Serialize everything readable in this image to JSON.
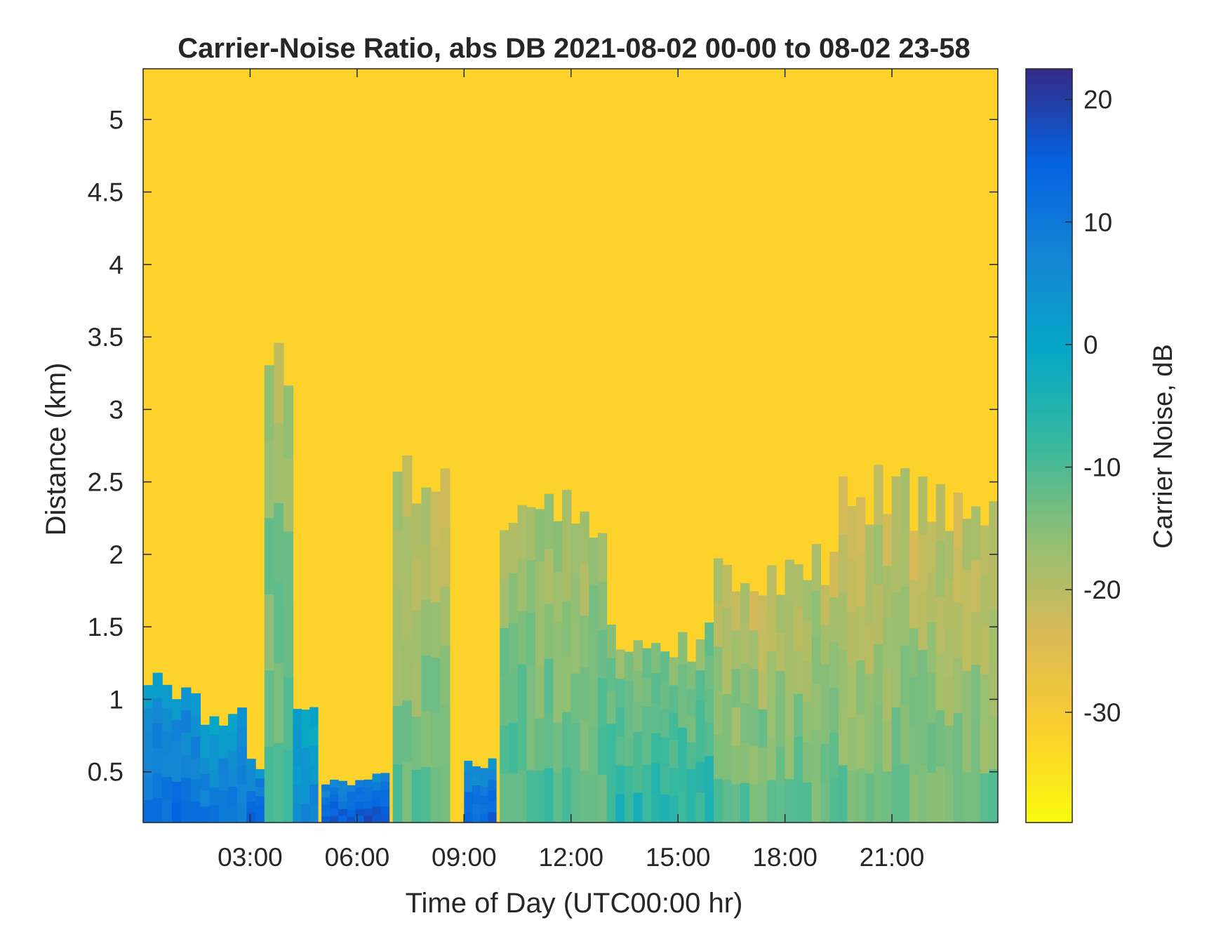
{
  "chart_data": {
    "type": "heatmap",
    "title": "Carrier-Noise Ratio, abs DB 2021-08-02 00-00 to 08-02 23-58",
    "xlabel": "Time of Day (UTC00:00 hr)",
    "ylabel": "Distance (km)",
    "colorbar_label": "Carrier Noise, dB",
    "xlim": [
      0,
      23.97
    ],
    "ylim": [
      0.15,
      5.35
    ],
    "clim": [
      -39,
      22.5
    ],
    "x_ticks": [
      3,
      6,
      9,
      12,
      15,
      18,
      21
    ],
    "x_tick_labels": [
      "03:00",
      "06:00",
      "09:00",
      "12:00",
      "15:00",
      "18:00",
      "21:00"
    ],
    "y_ticks": [
      0.5,
      1,
      1.5,
      2,
      2.5,
      3,
      3.5,
      4,
      4.5,
      5
    ],
    "y_tick_labels": [
      "0.5",
      "1",
      "1.5",
      "2",
      "2.5",
      "3",
      "3.5",
      "4",
      "4.5",
      "5"
    ],
    "colorbar_ticks": [
      -30,
      -20,
      -10,
      0,
      10,
      20
    ],
    "colorbar_tick_labels": [
      "-30",
      "-20",
      "-10",
      "0",
      "10",
      "20"
    ],
    "colormap": "parula",
    "colormap_reversed": true,
    "colormap_stops": [
      "#352a87",
      "#0363e1",
      "#1485d4",
      "#06a7c6",
      "#38b99e",
      "#92bf73",
      "#d9ba56",
      "#fcce2e",
      "#f9fb0e"
    ],
    "background_level_db": -32,
    "grid": false,
    "signal_regions": [
      {
        "t": [
          0.0,
          1.6
        ],
        "top_km": 1.1,
        "value_db": 12
      },
      {
        "t": [
          1.6,
          2.9
        ],
        "top_km": 0.9,
        "value_db": 10
      },
      {
        "t": [
          2.9,
          3.4
        ],
        "top_km": 0.55,
        "value_db": 14
      },
      {
        "t": [
          3.4,
          4.2
        ],
        "top_km": 3.4,
        "value_db": -10
      },
      {
        "t": [
          4.2,
          4.9
        ],
        "top_km": 1.0,
        "value_db": 8
      },
      {
        "t": [
          5.0,
          6.9
        ],
        "top_km": 0.45,
        "value_db": 16
      },
      {
        "t": [
          7.0,
          8.6
        ],
        "top_km": 2.6,
        "value_db": -12
      },
      {
        "t": [
          9.0,
          9.9
        ],
        "top_km": 0.55,
        "value_db": 14
      },
      {
        "t": [
          10.0,
          13.0
        ],
        "top_km": 2.3,
        "value_db": -10
      },
      {
        "t": [
          13.0,
          16.0
        ],
        "top_km": 1.4,
        "value_db": -6
      },
      {
        "t": [
          16.0,
          19.5
        ],
        "top_km": 1.9,
        "value_db": -12
      },
      {
        "t": [
          19.5,
          23.97
        ],
        "top_km": 2.4,
        "value_db": -13
      }
    ]
  }
}
